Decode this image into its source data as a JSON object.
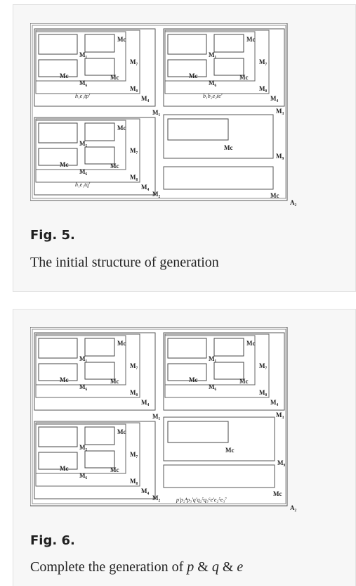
{
  "figures": [
    {
      "label": "Fig. 5.",
      "caption": "The initial structure of generation",
      "diagram": {
        "outer_label": "A₂",
        "lower_right_label": "Mc",
        "cluster_top_left": {
          "labels": [
            "M₁",
            "Mc",
            "M₇",
            "Mc",
            "Mc",
            "M₆",
            "M₈",
            "M₄",
            "M₁"
          ],
          "expression": "h₁e₁tp'"
        },
        "cluster_top_right": {
          "labels": [
            "M₁",
            "Mc",
            "M₇",
            "Mc",
            "Mc",
            "M₆",
            "M₈",
            "M₄",
            "M₃"
          ],
          "expression": "b₁b₂e₂te'"
        },
        "cluster_bottom_left": {
          "labels": [
            "M₅",
            "Mc",
            "M₇",
            "Mc",
            "Mc",
            "M₆",
            "M₈",
            "M₄",
            "M₂"
          ],
          "expression": "h₁e₁tq'"
        },
        "single_block": {
          "label": "Mc",
          "outer_label": "M₉"
        }
      }
    },
    {
      "label": "Fig. 6.",
      "caption_prefix": "Complete the generation of ",
      "caption_p": "p",
      "caption_amp1": " & ",
      "caption_q": "q",
      "caption_amp2": " & ",
      "caption_e": "e",
      "diagram": {
        "outer_label": "A₂",
        "lower_right_label": "Mc",
        "cluster_top_left": {
          "labels": [
            "M₁",
            "Mc",
            "M₇",
            "Mc",
            "Mc",
            "M₆",
            "M₈",
            "M₄",
            "M₁"
          ]
        },
        "cluster_top_right": {
          "labels": [
            "M₁",
            "Mc",
            "M₇",
            "Mc",
            "Mc",
            "M₆",
            "M₈",
            "M₄",
            "M₃"
          ]
        },
        "cluster_bottom_left": {
          "labels": [
            "M₅",
            "Mc",
            "M₇",
            "Mc",
            "Mc",
            "M₆",
            "M₈",
            "M₄",
            "M₂"
          ]
        },
        "single_block": {
          "label": "Mc",
          "outer_label": "M₉"
        },
        "expression": "p'p₂⁴p₃'q'q₂⁵q₃⁶e'e₂⁵e₃⁷"
      }
    }
  ]
}
